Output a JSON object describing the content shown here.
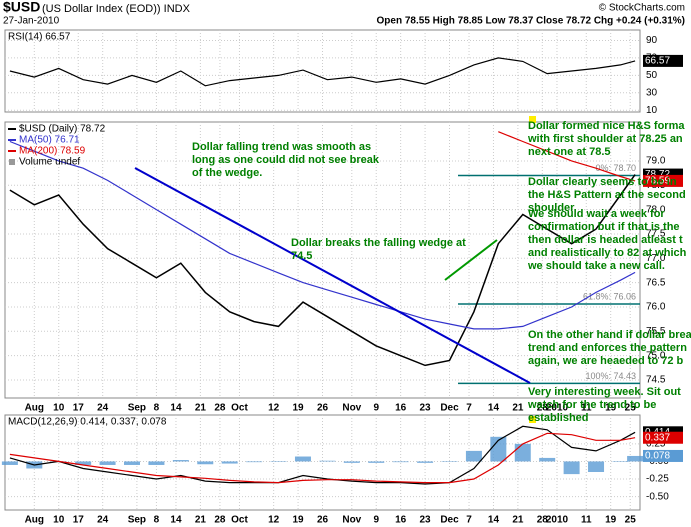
{
  "header": {
    "symbol": "$USD",
    "name": "(US Dollar Index (EOD)) INDX",
    "date": "27-Jan-2010",
    "quote": "Open 78.55 High 78.85 Low 78.37 Close 78.72 Chg +0.24 (+0.31%)",
    "copyright": "© StockCharts.com"
  },
  "chart_data": [
    {
      "type": "line",
      "title": "RSI(14) 66.57",
      "x": [
        0,
        5,
        10,
        15,
        20,
        25,
        30,
        35,
        40,
        45,
        50,
        55,
        60,
        65,
        70,
        75,
        80,
        85,
        90,
        95,
        100,
        105,
        110,
        115,
        120,
        125,
        128
      ],
      "xlim": [
        -1,
        129
      ],
      "ylim": [
        8,
        102
      ],
      "yticks": [
        90,
        70,
        50,
        30,
        10
      ],
      "grid": true,
      "series": [
        {
          "color": "#000000",
          "last_box": true,
          "values": [
            55,
            48,
            58,
            45,
            40,
            50,
            42,
            55,
            38,
            44,
            47,
            50,
            56,
            45,
            48,
            42,
            46,
            40,
            50,
            62,
            70,
            66,
            52,
            55,
            58,
            62,
            66.57
          ]
        }
      ]
    },
    {
      "type": "line",
      "legend_extra": [
        "Volume undef"
      ],
      "x": [
        0,
        5,
        10,
        15,
        20,
        25,
        30,
        35,
        40,
        45,
        50,
        55,
        60,
        65,
        70,
        75,
        80,
        85,
        90,
        95,
        100,
        105,
        110,
        115,
        120,
        125,
        128
      ],
      "xlim": [
        -1,
        129
      ],
      "ylim": [
        74.13,
        79.8
      ],
      "yticks": [
        74.5,
        {
          "value": 75,
          "label": "75.0"
        },
        75.5,
        {
          "value": 76,
          "label": "76.0"
        },
        76.5,
        {
          "value": 77,
          "label": "77.0"
        },
        77.5,
        {
          "value": 78,
          "label": "78.0"
        },
        78.5,
        {
          "value": 79,
          "label": "79.0"
        }
      ],
      "xticks": [
        {
          "value": 5,
          "label": "Aug"
        },
        {
          "value": 10,
          "label": "10"
        },
        {
          "value": 14,
          "label": "17"
        },
        {
          "value": 19,
          "label": "24"
        },
        {
          "value": 26,
          "label": "Sep"
        },
        {
          "value": 30,
          "label": "8"
        },
        {
          "value": 34,
          "label": "14"
        },
        {
          "value": 39,
          "label": "21"
        },
        {
          "value": 43,
          "label": "28"
        },
        {
          "value": 47,
          "label": "Oct"
        },
        {
          "value": 54,
          "label": "12"
        },
        {
          "value": 59,
          "label": "19"
        },
        {
          "value": 64,
          "label": "26"
        },
        {
          "value": 70,
          "label": "Nov"
        },
        {
          "value": 75,
          "label": "9"
        },
        {
          "value": 80,
          "label": "16"
        },
        {
          "value": 85,
          "label": "23"
        },
        {
          "value": 90,
          "label": "Dec"
        },
        {
          "value": 94,
          "label": "7"
        },
        {
          "value": 99,
          "label": "14"
        },
        {
          "value": 104,
          "label": "21"
        },
        {
          "value": 109,
          "label": "28"
        },
        {
          "value": 112,
          "label": "2010"
        },
        {
          "value": 118,
          "label": "11"
        },
        {
          "value": 123,
          "label": "19"
        },
        {
          "value": 127,
          "label": "25"
        }
      ],
      "grid": true,
      "series": [
        {
          "name": "$USD (Daily) 78.72",
          "color": "#000000",
          "last_box": true,
          "values": [
            78.4,
            78.1,
            78.3,
            77.7,
            77.2,
            76.9,
            76.6,
            76.9,
            76.3,
            75.9,
            75.7,
            75.6,
            76.1,
            75.8,
            75.5,
            75.2,
            75.0,
            74.8,
            74.9,
            75.9,
            77.3,
            77.9,
            77.6,
            77.3,
            77.6,
            78.3,
            78.72
          ]
        },
        {
          "name": "MA(50) 76.71",
          "color": "#3333cc",
          "values": [
            79.4,
            79.2,
            79.0,
            78.85,
            78.6,
            78.3,
            78.0,
            77.7,
            77.4,
            77.1,
            76.9,
            76.7,
            76.5,
            76.35,
            76.2,
            76.05,
            75.9,
            75.75,
            75.65,
            75.55,
            75.55,
            75.6,
            75.8,
            76.0,
            76.3,
            76.55,
            76.71
          ]
        },
        {
          "name": "MA(200) 78.59",
          "color": "#dd0000",
          "last_box": true,
          "values": [
            null,
            null,
            null,
            null,
            null,
            null,
            null,
            null,
            null,
            null,
            null,
            null,
            null,
            null,
            null,
            null,
            null,
            null,
            null,
            null,
            79.6,
            79.4,
            79.2,
            79.0,
            78.85,
            78.68,
            78.59
          ]
        }
      ],
      "fib_levels": [
        {
          "label": "0%: 78.70",
          "value": 78.7
        },
        {
          "label": "61.8%: 76.06",
          "value": 76.06
        },
        {
          "label": "100%: 74.43",
          "value": 74.43
        }
      ],
      "annotations": [
        {
          "lines": [
            "Dollar falling trend was smooth as",
            "long as one could did not see break",
            "of the wedge."
          ]
        },
        {
          "lines": [
            "Dollar breaks the falling wedge at",
            "74.5"
          ]
        },
        {
          "lines": [
            "Dollar formed nice H&S forma",
            "with first shoulder at 78.25 an",
            "next one at 78.5"
          ]
        },
        {
          "lines": [
            "Dollar clearly seems to be in",
            "the H&S Pattern at the second",
            "shoulder"
          ]
        },
        {
          "lines": [
            "We should wait a week for",
            "confirmation but if that is the",
            "then dollar is headed atleast t",
            "and realistically to 82 at which",
            "we should take a new call."
          ]
        },
        {
          "lines": [
            "On the other hand if dollar brea",
            "trend and enforces the pattern",
            "again, we are heaeded to 72 b"
          ]
        },
        {
          "lines": [
            "Very interesting week. Sit out",
            "watch for the trend to be",
            "established"
          ]
        }
      ]
    },
    {
      "type": "line",
      "title": "MACD(12,26,9) 0.414, 0.337, 0.078",
      "x": [
        0,
        5,
        10,
        15,
        20,
        25,
        30,
        35,
        40,
        45,
        50,
        55,
        60,
        65,
        70,
        75,
        80,
        85,
        90,
        95,
        100,
        105,
        110,
        115,
        120,
        125,
        128
      ],
      "xlim": [
        -1,
        129
      ],
      "ylim": [
        -0.69,
        0.66
      ],
      "yticks": [
        0.25,
        {
          "value": 0,
          "label": "-0.00"
        },
        -0.25,
        {
          "value": -0.5,
          "label": "-0.50"
        }
      ],
      "xticks": [
        {
          "value": 5,
          "label": "Aug"
        },
        {
          "value": 10,
          "label": "10"
        },
        {
          "value": 14,
          "label": "17"
        },
        {
          "value": 19,
          "label": "24"
        },
        {
          "value": 26,
          "label": "Sep"
        },
        {
          "value": 30,
          "label": "8"
        },
        {
          "value": 34,
          "label": "14"
        },
        {
          "value": 39,
          "label": "21"
        },
        {
          "value": 43,
          "label": "28"
        },
        {
          "value": 47,
          "label": "Oct"
        },
        {
          "value": 54,
          "label": "12"
        },
        {
          "value": 59,
          "label": "19"
        },
        {
          "value": 64,
          "label": "26"
        },
        {
          "value": 70,
          "label": "Nov"
        },
        {
          "value": 75,
          "label": "9"
        },
        {
          "value": 80,
          "label": "16"
        },
        {
          "value": 85,
          "label": "23"
        },
        {
          "value": 90,
          "label": "Dec"
        },
        {
          "value": 94,
          "label": "7"
        },
        {
          "value": 99,
          "label": "14"
        },
        {
          "value": 104,
          "label": "21"
        },
        {
          "value": 109,
          "label": "28"
        },
        {
          "value": 112,
          "label": "2010"
        },
        {
          "value": 118,
          "label": "11"
        },
        {
          "value": 123,
          "label": "19"
        },
        {
          "value": 127,
          "label": "25"
        }
      ],
      "grid": true,
      "series": [
        {
          "style": "bar",
          "color": "#5a9bd4",
          "last_box": true,
          "values": [
            -0.05,
            -0.1,
            0,
            -0.05,
            -0.05,
            -0.05,
            -0.05,
            0.02,
            -0.04,
            -0.03,
            -0.01,
            0,
            0.07,
            0.01,
            -0.02,
            -0.02,
            -0.01,
            -0.02,
            0,
            0.15,
            0.35,
            0.25,
            0.05,
            -0.18,
            -0.15,
            0,
            0.078
          ]
        },
        {
          "color": "#000000",
          "last_box": true,
          "values": [
            0.05,
            -0.05,
            0,
            -0.1,
            -0.15,
            -0.2,
            -0.25,
            -0.2,
            -0.28,
            -0.3,
            -0.3,
            -0.3,
            -0.2,
            -0.25,
            -0.28,
            -0.3,
            -0.3,
            -0.32,
            -0.3,
            -0.1,
            0.3,
            0.5,
            0.45,
            0.2,
            0.15,
            0.3,
            0.414
          ]
        },
        {
          "color": "#dd0000",
          "last_box": true,
          "values": [
            0.1,
            0.05,
            0,
            -0.05,
            -0.1,
            -0.15,
            -0.2,
            -0.22,
            -0.24,
            -0.27,
            -0.29,
            -0.3,
            -0.27,
            -0.26,
            -0.26,
            -0.28,
            -0.29,
            -0.3,
            -0.3,
            -0.25,
            -0.05,
            0.25,
            0.4,
            0.38,
            0.3,
            0.3,
            0.337
          ]
        }
      ]
    }
  ]
}
